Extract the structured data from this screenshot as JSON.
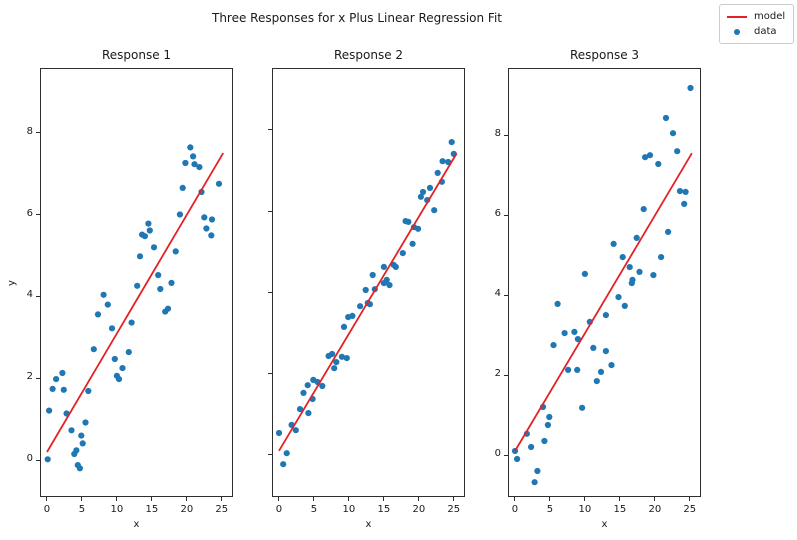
{
  "figure": {
    "title": "Three Responses for x Plus Linear Regression Fit",
    "background": "#ffffff",
    "accent_colors": {
      "model_line": "#e32227",
      "data_point": "#1f77b4",
      "spine": "#2e2e2e"
    },
    "legend": {
      "position": "top-right",
      "items": [
        {
          "label": "model",
          "marker": "line",
          "color": "#e32227"
        },
        {
          "label": "data",
          "marker": "dot",
          "color": "#1f77b4"
        }
      ]
    }
  },
  "chart_data": [
    {
      "type": "scatter",
      "title": "Response 1",
      "xlabel": "x",
      "ylabel": "y",
      "xlim": [
        -1.0,
        26.6
      ],
      "ylim": [
        -0.9,
        9.58
      ],
      "xticks": [
        0,
        5,
        10,
        15,
        20,
        25
      ],
      "yticks": [
        0,
        2,
        4,
        6,
        8
      ],
      "show_ytick_labels": true,
      "grid": false,
      "model_line": {
        "name": "model",
        "color": "#e32227",
        "x": [
          0,
          25.2
        ],
        "y": [
          0.2,
          7.5
        ]
      },
      "data_series": {
        "name": "data",
        "color": "#1f77b4",
        "x": [
          0.1,
          0.3,
          0.8,
          1.3,
          2.2,
          2.4,
          2.8,
          3.5,
          3.9,
          4.2,
          4.4,
          4.7,
          4.9,
          5.1,
          5.5,
          5.9,
          6.7,
          7.3,
          8.1,
          8.7,
          9.3,
          9.7,
          10.0,
          10.3,
          10.8,
          11.7,
          12.1,
          12.9,
          13.3,
          13.6,
          14.0,
          14.5,
          14.7,
          15.3,
          15.9,
          16.2,
          16.9,
          17.3,
          17.8,
          18.4,
          19.0,
          19.4,
          19.8,
          20.5,
          20.9,
          21.1,
          21.8,
          22.1,
          22.5,
          22.8,
          23.5,
          23.6,
          24.6
        ],
        "y": [
          0.02,
          1.21,
          1.74,
          1.98,
          2.13,
          1.72,
          1.14,
          0.73,
          0.15,
          0.24,
          -0.12,
          -0.2,
          0.6,
          0.41,
          0.92,
          1.69,
          2.71,
          3.56,
          4.04,
          3.8,
          3.22,
          2.47,
          2.06,
          1.98,
          2.25,
          2.64,
          3.36,
          4.26,
          4.98,
          5.51,
          5.47,
          5.78,
          5.61,
          5.2,
          4.52,
          4.18,
          3.63,
          3.7,
          4.33,
          5.1,
          6.0,
          6.65,
          7.26,
          7.64,
          7.42,
          7.23,
          7.16,
          6.55,
          5.93,
          5.66,
          5.49,
          5.88,
          6.75
        ]
      }
    },
    {
      "type": "scatter",
      "title": "Response 2",
      "xlabel": "x",
      "ylabel": "",
      "xlim": [
        -1.0,
        26.6
      ],
      "ylim": [
        -1.06,
        9.53
      ],
      "xticks": [
        0,
        5,
        10,
        15,
        20,
        25
      ],
      "yticks": [
        0,
        2,
        4,
        6,
        8
      ],
      "show_ytick_labels": false,
      "grid": false,
      "model_line": {
        "name": "model",
        "color": "#e32227",
        "x": [
          0,
          25.4
        ],
        "y": [
          0.08,
          7.42
        ]
      },
      "data_series": {
        "name": "data",
        "color": "#1f77b4",
        "x": [
          0.0,
          0.6,
          1.1,
          1.8,
          2.4,
          3.0,
          3.5,
          4.1,
          4.2,
          4.8,
          4.9,
          5.5,
          6.2,
          7.1,
          7.6,
          7.9,
          8.2,
          9.0,
          9.3,
          9.7,
          9.9,
          10.5,
          11.6,
          12.4,
          12.7,
          13.0,
          13.4,
          13.7,
          15.0,
          15.0,
          15.4,
          15.8,
          16.4,
          16.7,
          17.7,
          18.1,
          18.5,
          19.1,
          19.3,
          19.9,
          20.3,
          20.6,
          21.2,
          21.6,
          22.2,
          22.7,
          23.3,
          23.4,
          24.2,
          24.7,
          25.0
        ],
        "y": [
          0.52,
          -0.25,
          0.02,
          0.72,
          0.59,
          1.11,
          1.51,
          1.7,
          1.01,
          1.36,
          1.83,
          1.78,
          1.68,
          2.42,
          2.47,
          2.12,
          2.27,
          2.4,
          3.14,
          2.37,
          3.38,
          3.41,
          3.65,
          4.05,
          3.73,
          3.7,
          4.42,
          4.07,
          4.62,
          4.22,
          4.3,
          4.17,
          4.67,
          4.62,
          4.96,
          5.75,
          5.73,
          5.19,
          5.6,
          5.56,
          6.35,
          6.47,
          6.27,
          6.57,
          6.02,
          6.94,
          6.72,
          7.23,
          7.21,
          7.7,
          7.41
        ]
      }
    },
    {
      "type": "scatter",
      "title": "Response 3",
      "xlabel": "x",
      "ylabel": "",
      "xlim": [
        -1.0,
        26.6
      ],
      "ylim": [
        -1.05,
        9.68
      ],
      "xticks": [
        0,
        5,
        10,
        15,
        20,
        25
      ],
      "yticks": [
        0,
        2,
        4,
        6,
        8
      ],
      "show_ytick_labels": true,
      "grid": false,
      "model_line": {
        "name": "model",
        "color": "#e32227",
        "x": [
          0,
          25.3
        ],
        "y": [
          0.1,
          7.55
        ]
      },
      "data_series": {
        "name": "data",
        "color": "#1f77b4",
        "x": [
          0.0,
          0.3,
          1.7,
          2.3,
          2.8,
          3.2,
          4.0,
          4.2,
          4.7,
          4.9,
          5.5,
          6.1,
          7.1,
          7.6,
          8.5,
          8.9,
          9.0,
          9.6,
          10.0,
          10.7,
          11.2,
          11.7,
          12.3,
          13.0,
          13.0,
          13.8,
          14.1,
          14.8,
          15.4,
          15.7,
          16.4,
          16.7,
          16.8,
          17.4,
          17.8,
          18.4,
          18.6,
          19.3,
          19.8,
          20.5,
          20.9,
          21.6,
          21.9,
          22.6,
          23.2,
          23.6,
          24.2,
          24.4,
          25.1
        ],
        "y": [
          0.1,
          -0.1,
          0.53,
          0.2,
          -0.68,
          -0.4,
          1.2,
          0.35,
          0.75,
          0.95,
          2.75,
          3.78,
          3.05,
          2.13,
          3.08,
          2.13,
          2.9,
          1.18,
          4.53,
          3.33,
          2.68,
          1.85,
          2.08,
          3.5,
          2.6,
          2.25,
          5.28,
          3.95,
          4.95,
          3.73,
          4.7,
          4.3,
          4.38,
          5.43,
          4.58,
          6.15,
          7.45,
          7.5,
          4.5,
          7.28,
          4.95,
          8.43,
          5.58,
          8.05,
          7.6,
          6.6,
          6.28,
          6.58,
          9.18
        ]
      }
    }
  ]
}
